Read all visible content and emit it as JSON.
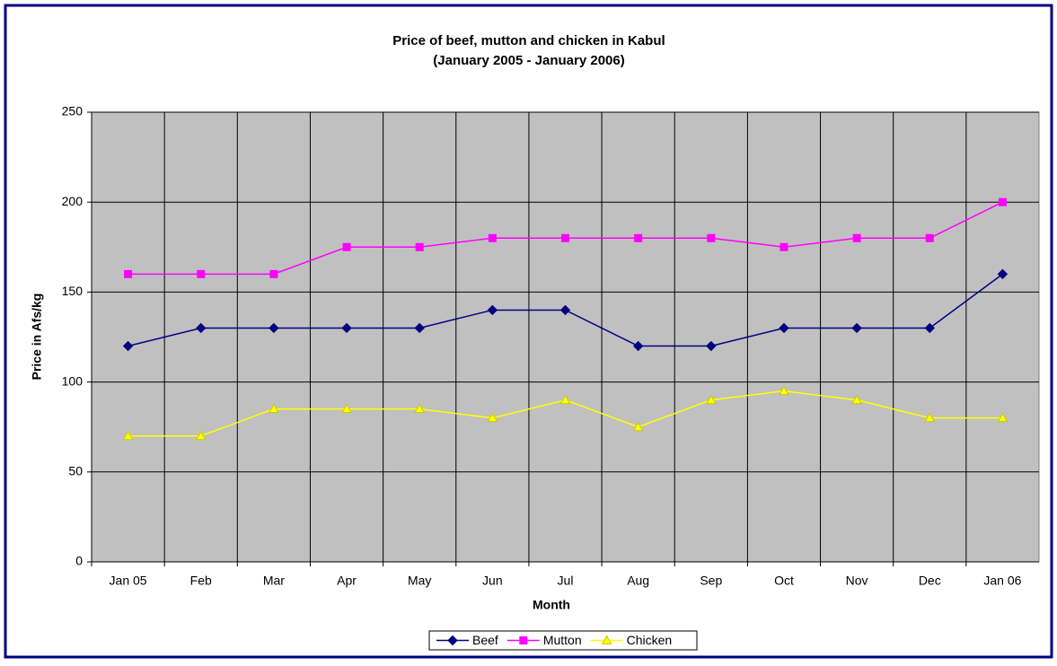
{
  "chart_data": {
    "type": "line",
    "title": "Price of beef, mutton and chicken in Kabul",
    "subtitle": "(January 2005 - January 2006)",
    "x_label": "Month",
    "y_label": "Price in Afs/kg",
    "categories": [
      "Jan 05",
      "Feb",
      "Mar",
      "Apr",
      "May",
      "Jun",
      "Jul",
      "Aug",
      "Sep",
      "Oct",
      "Nov",
      "Dec",
      "Jan 06"
    ],
    "series": [
      {
        "name": "Beef",
        "color": "#000080",
        "marker": "diamond",
        "values": [
          120,
          130,
          130,
          130,
          130,
          140,
          140,
          120,
          120,
          130,
          130,
          130,
          160
        ]
      },
      {
        "name": "Mutton",
        "color": "#ff00ff",
        "marker": "square",
        "values": [
          160,
          160,
          160,
          175,
          175,
          180,
          180,
          180,
          180,
          175,
          180,
          180,
          200
        ]
      },
      {
        "name": "Chicken",
        "color": "#ffff00",
        "marker": "triangle",
        "values": [
          70,
          70,
          85,
          85,
          85,
          80,
          90,
          75,
          90,
          95,
          90,
          80,
          80
        ]
      }
    ],
    "ylim": [
      0,
      250
    ],
    "yticks": [
      0,
      50,
      100,
      150,
      200,
      250
    ],
    "grid": true,
    "legend": "bottom",
    "plot_background": "#c0c0c0"
  }
}
